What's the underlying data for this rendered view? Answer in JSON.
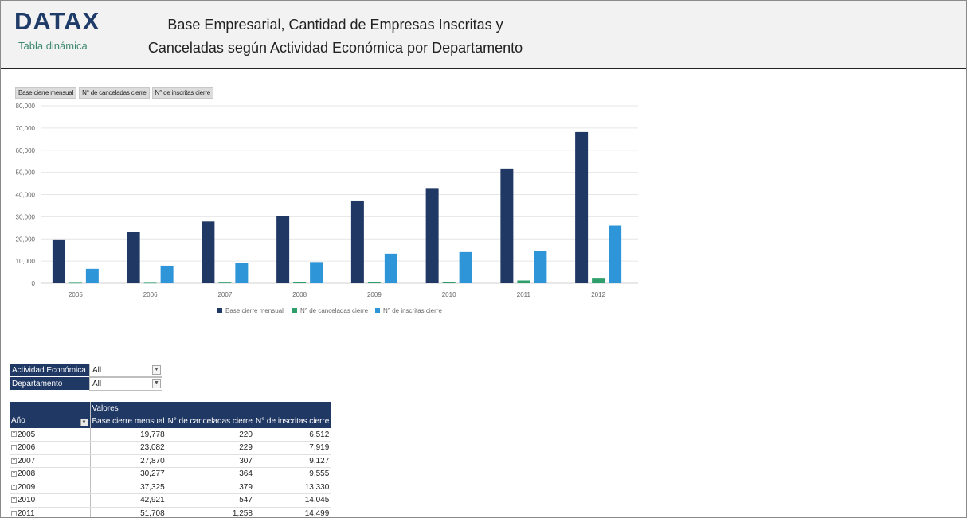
{
  "header": {
    "logo": "DATAX",
    "logo_sub": "Tabla dinámica",
    "title_line1": "Base Empresarial, Cantidad de Empresas Inscritas y",
    "title_line2": "Canceladas según Actividad Económica por Departamento"
  },
  "field_buttons": [
    "Base cierre mensual",
    "N° de canceladas cierre",
    "N° de inscritas cierre"
  ],
  "chart_data": {
    "type": "bar",
    "categories": [
      "2005",
      "2006",
      "2007",
      "2008",
      "2009",
      "2010",
      "2011",
      "2012"
    ],
    "series": [
      {
        "name": "Base cierre mensual",
        "color": "#203864",
        "values": [
          19778,
          23082,
          27870,
          30277,
          37325,
          42921,
          51708,
          68200
        ]
      },
      {
        "name": "N° de canceladas cierre",
        "color": "#2e9e6b",
        "values": [
          220,
          229,
          307,
          364,
          379,
          547,
          1258,
          2100
        ]
      },
      {
        "name": "N° de inscritas cierre",
        "color": "#2e95d8",
        "values": [
          6512,
          7919,
          9127,
          9555,
          13330,
          14045,
          14499,
          26000
        ]
      }
    ],
    "ylim": [
      0,
      80000
    ],
    "yticks": [
      "0",
      "10,000",
      "20,000",
      "30,000",
      "40,000",
      "50,000",
      "60,000",
      "70,000",
      "80,000"
    ],
    "grid": true,
    "legend": "bottom"
  },
  "filters": [
    {
      "label": "Actividad Económica",
      "value": "All"
    },
    {
      "label": "Departamento",
      "value": "All"
    }
  ],
  "pivot": {
    "valores_label": "Valores",
    "row_header": "Año",
    "columns": [
      "Base cierre mensual",
      "N° de canceladas cierre",
      "N° de inscritas cierre"
    ],
    "rows": [
      {
        "year": "2005",
        "v1": "19,778",
        "v2": "220",
        "v3": "6,512"
      },
      {
        "year": "2006",
        "v1": "23,082",
        "v2": "229",
        "v3": "7,919"
      },
      {
        "year": "2007",
        "v1": "27,870",
        "v2": "307",
        "v3": "9,127"
      },
      {
        "year": "2008",
        "v1": "30,277",
        "v2": "364",
        "v3": "9,555"
      },
      {
        "year": "2009",
        "v1": "37,325",
        "v2": "379",
        "v3": "13,330"
      },
      {
        "year": "2010",
        "v1": "42,921",
        "v2": "547",
        "v3": "14,045"
      },
      {
        "year": "2011",
        "v1": "51,708",
        "v2": "1,258",
        "v3": "14,499"
      }
    ]
  }
}
